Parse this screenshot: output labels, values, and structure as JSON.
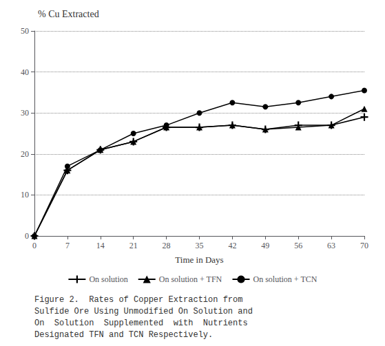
{
  "chart_data": {
    "type": "line",
    "title": "% Cu Extracted",
    "xlabel": "Time in Days",
    "x": [
      0,
      7,
      14,
      21,
      28,
      35,
      42,
      49,
      56,
      63,
      70
    ],
    "series": [
      {
        "name": "On solution",
        "color": "#000000",
        "marker": "plus",
        "values": [
          0,
          16,
          21,
          23,
          26.5,
          26.5,
          27,
          26,
          27,
          27,
          29
        ]
      },
      {
        "name": "On solution + TFN",
        "color": "#000000",
        "marker": "triangle",
        "values": [
          0,
          16,
          21,
          23,
          26.5,
          26.5,
          27,
          26,
          26.5,
          27,
          31
        ]
      },
      {
        "name": "On solution + TCN",
        "color": "#000000",
        "marker": "circle",
        "values": [
          0,
          17,
          21,
          25,
          27,
          30,
          32.5,
          31.5,
          32.5,
          34,
          35.5
        ]
      }
    ],
    "xlim": [
      0,
      70
    ],
    "xticks": [
      0,
      7,
      14,
      21,
      28,
      35,
      42,
      49,
      56,
      63,
      70
    ],
    "ylim": [
      0,
      50
    ],
    "yticks": [
      0,
      10,
      20,
      30,
      40,
      50
    ],
    "grid": true,
    "legend": "bottom",
    "caption": "Figure 2.  Rates of Copper Extraction from\nSulfide Ore Using Unmodified On Solution and\nOn  Solution  Supplemented  with  Nutrients\nDesignated TFN and TCN Respectively."
  }
}
